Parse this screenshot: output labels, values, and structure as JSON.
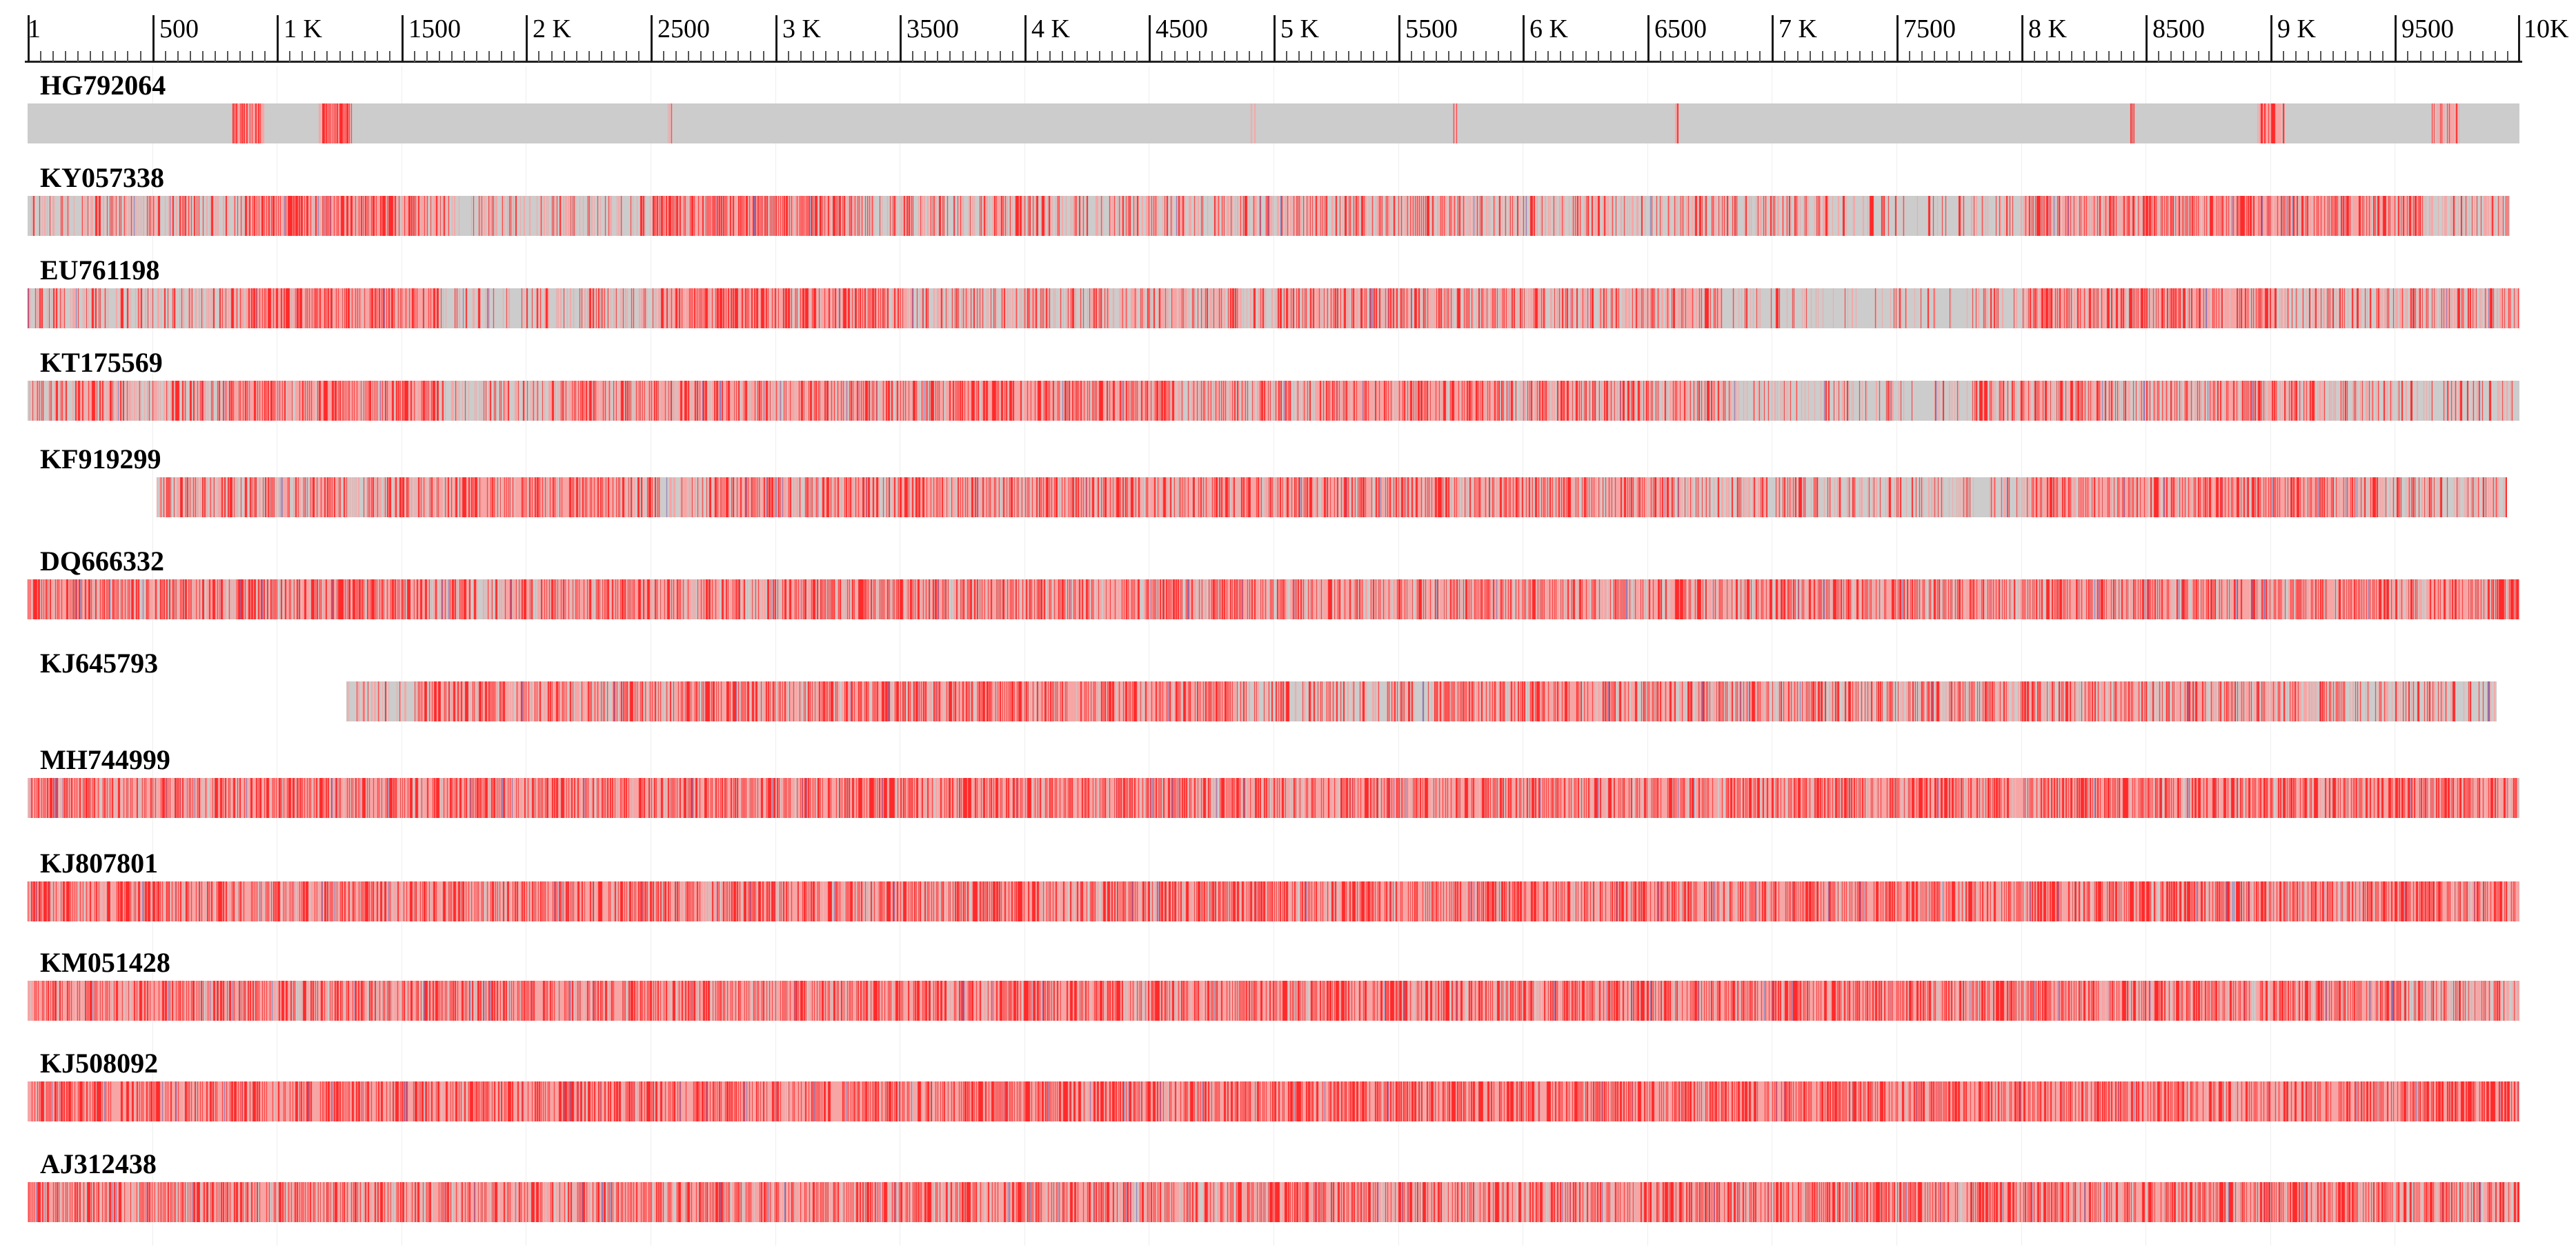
{
  "ruler": {
    "range": [
      1,
      10000
    ],
    "labels": [
      "1",
      "500",
      "1 K",
      "1500",
      "2 K",
      "2500",
      "3 K",
      "3500",
      "4 K",
      "4500",
      "5 K",
      "5500",
      "6 K",
      "6500",
      "7 K",
      "7500",
      "8 K",
      "8500",
      "9 K",
      "9500",
      "10K"
    ]
  },
  "colors": {
    "background": "#ffffff",
    "unmatched": "#cccccc",
    "variation": "#ff2a2a",
    "variation_light": "#f7a5a5",
    "minor_variant": "#8a6fb0"
  },
  "sequences": [
    {
      "id": "HG792064",
      "span": [
        1,
        10000
      ],
      "blocks": [
        [
          820,
          950,
          0.85
        ],
        [
          1170,
          1300,
          0.95
        ],
        [
          2570,
          2585,
          0.6
        ],
        [
          4910,
          4925,
          0.6
        ],
        [
          5720,
          5735,
          0.6
        ],
        [
          6610,
          6625,
          0.6
        ],
        [
          8440,
          8455,
          0.6
        ],
        [
          8950,
          9060,
          0.85
        ],
        [
          9650,
          9760,
          0.6
        ]
      ]
    },
    {
      "id": "KY057338",
      "span": [
        1,
        9960
      ],
      "blocks": [
        [
          0,
          420,
          0.35
        ],
        [
          420,
          860,
          0.45
        ],
        [
          860,
          1650,
          0.85
        ],
        [
          1650,
          2500,
          0.3
        ],
        [
          2500,
          3320,
          0.8
        ],
        [
          3320,
          4920,
          0.45
        ],
        [
          4920,
          5750,
          0.6
        ],
        [
          5750,
          7300,
          0.4
        ],
        [
          7300,
          8000,
          0.2
        ],
        [
          8000,
          9600,
          0.75
        ],
        [
          9600,
          9960,
          0.4
        ]
      ]
    },
    {
      "id": "EU761198",
      "span": [
        1,
        10000
      ],
      "blocks": [
        [
          0,
          850,
          0.4
        ],
        [
          850,
          1650,
          0.85
        ],
        [
          1650,
          2550,
          0.3
        ],
        [
          2550,
          3450,
          0.8
        ],
        [
          3450,
          5000,
          0.5
        ],
        [
          5000,
          6800,
          0.55
        ],
        [
          6800,
          7850,
          0.15
        ],
        [
          7850,
          8050,
          0.3
        ],
        [
          8050,
          9000,
          0.75
        ],
        [
          9000,
          10000,
          0.45
        ]
      ]
    },
    {
      "id": "KT175569",
      "span": [
        1,
        10000
      ],
      "blocks": [
        [
          0,
          800,
          0.45
        ],
        [
          800,
          1650,
          0.85
        ],
        [
          1650,
          2100,
          0.3
        ],
        [
          2100,
          3700,
          0.7
        ],
        [
          3700,
          4600,
          0.85
        ],
        [
          4600,
          5200,
          0.6
        ],
        [
          5200,
          5900,
          0.85
        ],
        [
          5900,
          6800,
          0.6
        ],
        [
          6800,
          7800,
          0.3
        ],
        [
          7800,
          9200,
          0.6
        ],
        [
          9200,
          10000,
          0.35
        ]
      ]
    },
    {
      "id": "KF919299",
      "span": [
        520,
        9950
      ],
      "blocks": [
        [
          520,
          1650,
          0.6
        ],
        [
          1650,
          2400,
          0.85
        ],
        [
          2400,
          2750,
          0.45
        ],
        [
          2750,
          6600,
          0.7
        ],
        [
          6600,
          7200,
          0.45
        ],
        [
          7200,
          8050,
          0.3
        ],
        [
          8050,
          9250,
          0.75
        ],
        [
          9250,
          9950,
          0.45
        ]
      ]
    },
    {
      "id": "DQ666332",
      "span": [
        1,
        10000
      ],
      "blocks": [
        [
          0,
          1800,
          0.75
        ],
        [
          1800,
          1900,
          0.3
        ],
        [
          1900,
          10000,
          0.75
        ]
      ]
    },
    {
      "id": "KJ645793",
      "span": [
        1280,
        9910
      ],
      "blocks": [
        [
          1280,
          1560,
          0.3
        ],
        [
          1560,
          3280,
          0.75
        ],
        [
          3280,
          3280,
          0.3
        ],
        [
          3280,
          4850,
          0.85
        ],
        [
          4850,
          5650,
          0.35
        ],
        [
          5650,
          6520,
          0.8
        ],
        [
          6520,
          9300,
          0.6
        ],
        [
          9300,
          9910,
          0.35
        ]
      ]
    },
    {
      "id": "MH744999",
      "span": [
        1,
        10000
      ],
      "blocks": [
        [
          0,
          10000,
          0.85
        ]
      ]
    },
    {
      "id": "KJ807801",
      "span": [
        1,
        10000
      ],
      "blocks": [
        [
          0,
          10000,
          0.85
        ]
      ]
    },
    {
      "id": "KM051428",
      "span": [
        1,
        10000
      ],
      "blocks": [
        [
          0,
          9500,
          0.85
        ],
        [
          9500,
          10000,
          0.55
        ]
      ]
    },
    {
      "id": "KJ508092",
      "span": [
        1,
        10000
      ],
      "blocks": [
        [
          0,
          10000,
          0.95
        ]
      ]
    },
    {
      "id": "AJ312438",
      "span": [
        1,
        10000
      ],
      "blocks": [
        [
          0,
          10000,
          0.8
        ]
      ]
    }
  ]
}
